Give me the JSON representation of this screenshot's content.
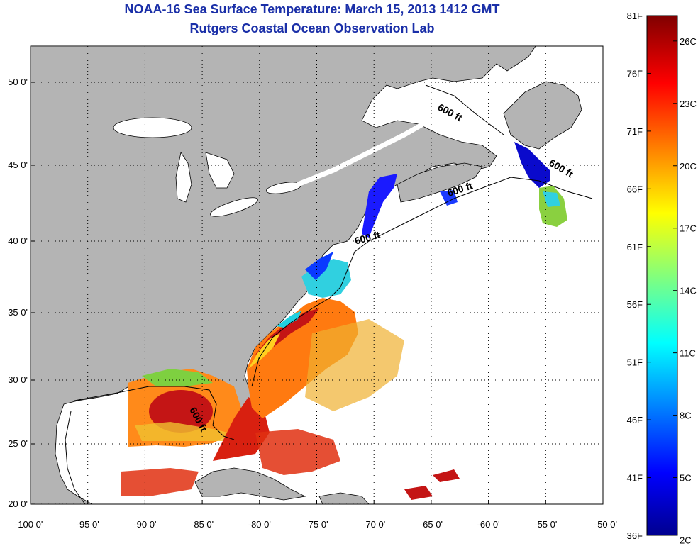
{
  "title": {
    "line1": "NOAA-16 Sea Surface Temperature:  March 15, 2013 1412 GMT",
    "line2": "Rutgers Coastal Ocean Observation Lab"
  },
  "colors": {
    "land": "#b4b4b4",
    "ocean": "#ffffff",
    "title": "#1a2fa8"
  },
  "lat_ticks": [
    {
      "value": 50,
      "label": "50 0'"
    },
    {
      "value": 45,
      "label": "45 0'"
    },
    {
      "value": 40,
      "label": "40 0'"
    },
    {
      "value": 35,
      "label": "35 0'"
    },
    {
      "value": 30,
      "label": "30 0'"
    },
    {
      "value": 25,
      "label": "25 0'"
    },
    {
      "value": 20,
      "label": "20 0'"
    }
  ],
  "lon_ticks": [
    {
      "value": -100,
      "label": "-100 0'"
    },
    {
      "value": -95,
      "label": "-95 0'"
    },
    {
      "value": -90,
      "label": "-90 0'"
    },
    {
      "value": -85,
      "label": "-85 0'"
    },
    {
      "value": -80,
      "label": "-80 0'"
    },
    {
      "value": -75,
      "label": "-75 0'"
    },
    {
      "value": -70,
      "label": "-70 0'"
    },
    {
      "value": -65,
      "label": "-65 0'"
    },
    {
      "value": -60,
      "label": "-60 0'"
    },
    {
      "value": -55,
      "label": "-55 0'"
    },
    {
      "value": -50,
      "label": "-50 0'"
    }
  ],
  "contour_labels": [
    {
      "text": "600 ft",
      "lon": -63.5,
      "lat": 48.0,
      "rotate": 28
    },
    {
      "text": "600 ft",
      "lon": -53.8,
      "lat": 44.6,
      "rotate": 30
    },
    {
      "text": "600 ft",
      "lon": -62.4,
      "lat": 43.2,
      "rotate": -18
    },
    {
      "text": "600 ft",
      "lon": -70.5,
      "lat": 40.0,
      "rotate": -15
    },
    {
      "text": "600 ft",
      "lon": -85.6,
      "lat": 26.8,
      "rotate": 62
    }
  ],
  "colorbar": {
    "min_f": 36,
    "max_f": 81,
    "f_labels": [
      "81F",
      "76F",
      "71F",
      "66F",
      "61F",
      "56F",
      "51F",
      "46F",
      "41F",
      "36F"
    ],
    "c_labels": [
      "26C",
      "23C",
      "20C",
      "17C",
      "14C",
      "11C",
      "8C",
      "5C",
      "2C"
    ]
  }
}
